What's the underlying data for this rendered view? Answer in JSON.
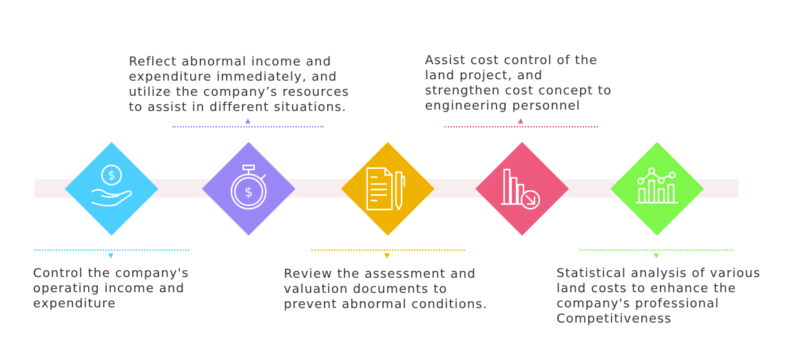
{
  "steps": [
    {
      "id": "income",
      "color": "#4ccfff",
      "icon": "hand-coin-icon",
      "text_position": "bottom",
      "lines": [
        "Control the company's",
        "operating income and",
        "expenditure"
      ]
    },
    {
      "id": "monitor",
      "color": "#9a86f5",
      "icon": "stopwatch-dollar-icon",
      "text_position": "top",
      "lines": [
        "Reflect abnormal income and",
        "expenditure immediately, and",
        "utilize the company’s resources",
        "to assist in different situations."
      ]
    },
    {
      "id": "review",
      "color": "#efb200",
      "icon": "document-pen-icon",
      "text_position": "bottom",
      "lines": [
        "Review the assessment and",
        "valuation documents to",
        "prevent abnormal conditions."
      ]
    },
    {
      "id": "cost",
      "color": "#ee5a7d",
      "icon": "chart-decrease-icon",
      "text_position": "top",
      "lines": [
        "Assist cost control of the",
        "land project, and",
        "strengthen cost concept to",
        "engineering personnel"
      ]
    },
    {
      "id": "stats",
      "color": "#7ef74a",
      "icon": "bar-line-chart-icon",
      "text_position": "bottom",
      "lines": [
        "Statistical analysis of various",
        "land costs to enhance the",
        "company's professional",
        "Competitiveness"
      ]
    }
  ],
  "band_color": "#f8eef0",
  "text_color": "#333333"
}
